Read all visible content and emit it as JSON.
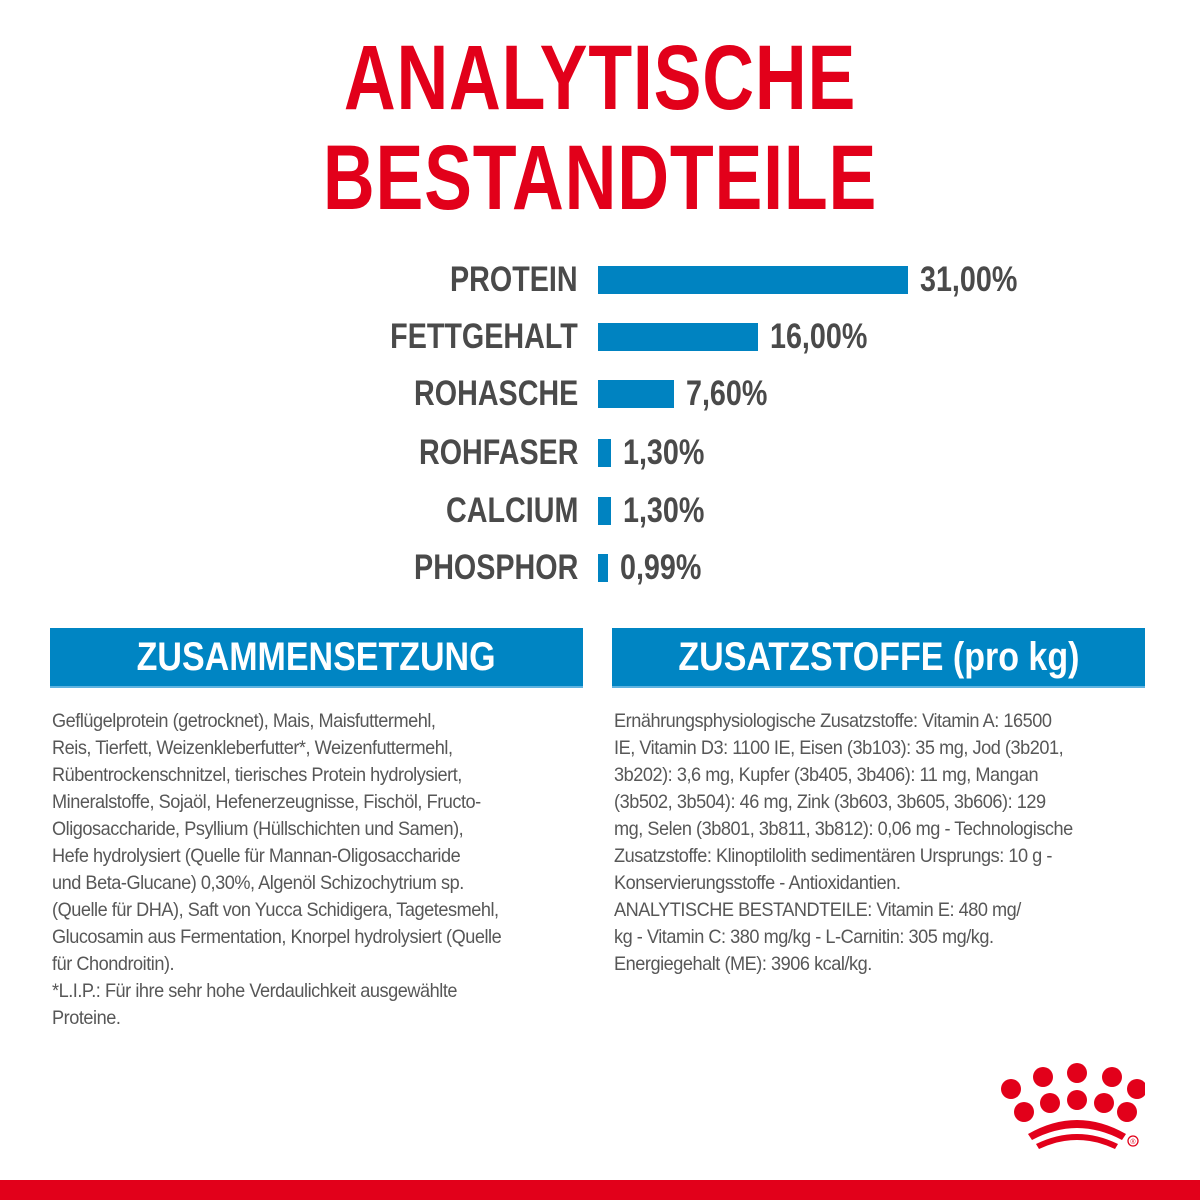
{
  "title": "ANALYTISCHE BESTANDTEILE",
  "colors": {
    "brand_red": "#e2001a",
    "bar_blue": "#0083c1",
    "text_gray": "#4a4a4a"
  },
  "chart_data": {
    "type": "bar",
    "orientation": "horizontal",
    "categories": [
      "PROTEIN",
      "FETTGEHALT",
      "ROHASCHE",
      "ROHFASER",
      "CALCIUM",
      "PHOSPHOR"
    ],
    "values": [
      31.0,
      16.0,
      7.6,
      1.3,
      1.3,
      0.99
    ],
    "data_labels": [
      "31,00%",
      "16,00%",
      "7,60%",
      "1,30%",
      "1,30%",
      "0,99%"
    ],
    "unit": "%",
    "grid": false
  },
  "composition": {
    "heading": "ZUSAMMENSETZUNG",
    "lines": [
      "Geflügelprotein (getrocknet), Mais, Maisfuttermehl,",
      "Reis, Tierfett, Weizenkleberfutter*, Weizenfuttermehl,",
      "Rübentrockenschnitzel, tierisches Protein hydrolysiert,",
      "Mineralstoffe, Sojaöl, Hefenerzeugnisse, Fischöl, Fructo-",
      "Oligosaccharide, Psyllium (Hüllschichten und Samen),",
      "Hefe hydrolysiert (Quelle für Mannan-Oligosaccharide",
      "und Beta-Glucane) 0,30%, Algenöl Schizochytrium sp.",
      "(Quelle für DHA), Saft von Yucca Schidigera, Tagetesmehl,",
      "Glucosamin aus Fermentation, Knorpel hydrolysiert (Quelle",
      "für Chondroitin).",
      "*L.I.P.: Für ihre sehr hohe Verdaulichkeit ausgewählte",
      "Proteine."
    ]
  },
  "additives": {
    "heading": "ZUSATZSTOFFE (pro kg)",
    "lines": [
      "Ernährungsphysiologische Zusatzstoffe: Vitamin A: 16500",
      "IE, Vitamin D3: 1100 IE, Eisen (3b103): 35 mg, Jod (3b201,",
      "3b202): 3,6 mg, Kupfer (3b405, 3b406): 11 mg, Mangan",
      "(3b502, 3b504): 46 mg, Zink (3b603, 3b605, 3b606): 129",
      "mg, Selen (3b801, 3b811, 3b812): 0,06 mg - Technologische",
      "Zusatzstoffe: Klinoptilolith sedimentären Ursprungs: 10 g -",
      "Konservierungsstoffe - Antioxidantien.",
      "ANALYTISCHE BESTANDTEILE: Vitamin E: 480 mg/",
      "kg - Vitamin C: 380 mg/kg - L-Carnitin: 305 mg/kg.",
      "Energiegehalt (ME): 3906 kcal/kg."
    ]
  },
  "logo": {
    "icon": "royal-canin-crown-icon",
    "text": "®"
  }
}
